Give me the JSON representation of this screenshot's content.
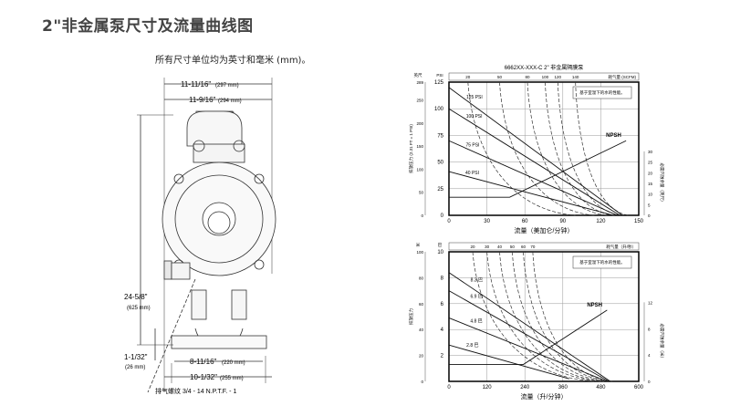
{
  "page": {
    "title": "2\"非金属泵尺寸及流量曲线图",
    "subtitle": "所有尺寸单位均为英寸和毫米 (mm)。"
  },
  "drawing": {
    "dim_width_overall": "11-11/16\"",
    "dim_width_overall_mm": "(297 mm)",
    "dim_width_body": "11-9/16\"",
    "dim_width_body_mm": "(294 mm)",
    "dim_height": "24-5/8\"",
    "dim_height_mm": "(625 mm)",
    "dim_base_height": "1-1/32\"",
    "dim_base_height_mm": "(26 mm)",
    "dim_base_inner": "8-11/16\"",
    "dim_base_inner_mm": "(220 mm)",
    "dim_base_outer": "10-1/32\"",
    "dim_base_outer_mm": "(255 mm)",
    "exhaust_note": "排气螺纹 3/4 - 14 N.P.T.F. - 1"
  },
  "chart_data": [
    {
      "type": "line",
      "title": "6662XX-XXX-C 2\" 非金属隔膜泵",
      "xlabel": "流量（美加仑/分钟）",
      "ylabel_left": "排放压力 (2.31 FT = 1 PSI)",
      "ylabel_left_units": [
        "英尺",
        "PSI"
      ],
      "ylabel_right": "必需汽蚀余量（英尺）",
      "top_axis_label": "耗气量 (SCFM)",
      "note": "基于室温下的水的性能。",
      "xlim": [
        0,
        150
      ],
      "ylim_psi": [
        0,
        125
      ],
      "x_ticks": [
        0,
        30,
        60,
        90,
        120,
        150
      ],
      "y_ticks_psi": [
        0,
        25,
        50,
        75,
        100,
        125
      ],
      "y_ticks_ft": [
        0,
        50,
        100,
        150,
        200,
        250,
        289
      ],
      "y_ticks_right": [
        0,
        5,
        10,
        15,
        20,
        25,
        30
      ],
      "top_ticks": [
        "20",
        "50",
        "80",
        "100",
        "120",
        "140"
      ],
      "series": [
        {
          "name": "125 PSI",
          "x": [
            0,
            137
          ],
          "y": [
            120,
            0
          ]
        },
        {
          "name": "100 PSI",
          "x": [
            0,
            135
          ],
          "y": [
            100,
            0
          ]
        },
        {
          "name": "75 PSI",
          "x": [
            0,
            133
          ],
          "y": [
            70,
            0
          ]
        },
        {
          "name": "40 PSI",
          "x": [
            0,
            60,
            130
          ],
          "y": [
            41,
            22,
            0
          ]
        },
        {
          "name": "NPSH",
          "x": [
            0,
            48,
            140
          ],
          "y": [
            17,
            17,
            70
          ]
        }
      ],
      "air_curves": [
        {
          "label": "20",
          "top_x": 15,
          "bottom_x": 100
        },
        {
          "label": "50",
          "top_x": 40,
          "bottom_x": 115
        },
        {
          "label": "80",
          "top_x": 62,
          "bottom_x": 125
        },
        {
          "label": "100",
          "top_x": 76,
          "bottom_x": 130
        },
        {
          "label": "120",
          "top_x": 86,
          "bottom_x": 136
        },
        {
          "label": "140",
          "top_x": 100,
          "bottom_x": 142
        }
      ]
    },
    {
      "type": "line",
      "xlabel": "流量（升/分钟）",
      "ylabel_left": "排放压力",
      "ylabel_left_units": [
        "米",
        "巴"
      ],
      "ylabel_right": "必需汽蚀余量（米）",
      "top_axis_label": "耗气量（升/秒）",
      "note": "基于室温下的水的性能。",
      "xlim": [
        0,
        600
      ],
      "ylim_bar": [
        0,
        10
      ],
      "x_ticks": [
        0,
        120,
        240,
        360,
        480,
        600
      ],
      "y_ticks_bar": [
        2,
        4,
        6,
        8,
        10
      ],
      "y_ticks_m": [
        0,
        20,
        40,
        60,
        80,
        100
      ],
      "y_ticks_right": [
        0,
        4,
        8,
        12
      ],
      "top_ticks": [
        "20",
        "30",
        "40",
        "50",
        "60",
        "70"
      ],
      "series": [
        {
          "name": "8.3 巴",
          "x": [
            0,
            510
          ],
          "y": [
            8.4,
            0
          ]
        },
        {
          "name": "6.9 巴",
          "x": [
            0,
            505
          ],
          "y": [
            7.0,
            0
          ]
        },
        {
          "name": "4.8 巴",
          "x": [
            0,
            500
          ],
          "y": [
            4.9,
            0
          ]
        },
        {
          "name": "2.8 巴",
          "x": [
            0,
            380
          ],
          "y": [
            2.8,
            0.2
          ]
        },
        {
          "name": "NPSH",
          "x": [
            0,
            235,
            500
          ],
          "y": [
            1.3,
            1.3,
            5.5
          ]
        }
      ],
      "air_curves": [
        {
          "label": "20",
          "top_x": 75,
          "bottom_x": 460
        },
        {
          "label": "30",
          "top_x": 120,
          "bottom_x": 480
        },
        {
          "label": "40",
          "top_x": 160,
          "bottom_x": 490
        },
        {
          "label": "50",
          "top_x": 200,
          "bottom_x": 500
        },
        {
          "label": "60",
          "top_x": 235,
          "bottom_x": 508
        },
        {
          "label": "70",
          "top_x": 265,
          "bottom_x": 515
        }
      ]
    }
  ]
}
